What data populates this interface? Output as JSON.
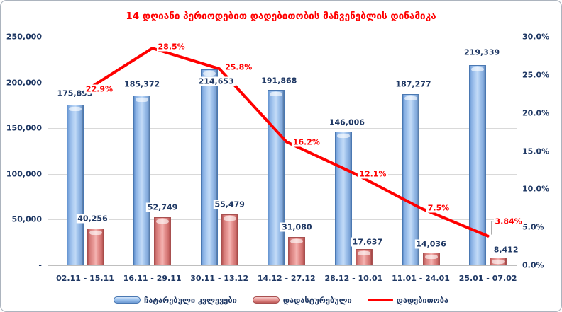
{
  "title": "14 დღიანი პერიოდებით დადებითობის მაჩვენებლის დინამიკა",
  "chart_data": {
    "type": "combo",
    "title": "14 დღიანი პერიოდებით დადებითობის მაჩვენებლის დინამიკა",
    "categories": [
      "02.11 - 15.11",
      "16.11 - 29.11",
      "30.11 - 13.12",
      "14.12 - 27.12",
      "28.12 - 10.01",
      "11.01 - 24.01",
      "25.01 - 07.02"
    ],
    "series": [
      {
        "name": "ჩატარებული კვლევები",
        "type": "bar",
        "axis": "left",
        "color": "#9DC3EE",
        "values": [
          175893,
          185372,
          214653,
          191868,
          146006,
          187277,
          219339
        ],
        "labels": [
          "175,893",
          "185,372",
          "214,653",
          "191,868",
          "146,006",
          "187,277",
          "219,339"
        ],
        "label_offsets": [
          [
            0,
            0
          ],
          [
            0,
            0
          ],
          [
            10,
            33
          ],
          [
            4,
            3
          ],
          [
            5,
            3
          ],
          [
            4,
            2
          ],
          [
            6,
            -2
          ]
        ]
      },
      {
        "name": "დადასტურებული",
        "type": "bar",
        "axis": "left",
        "color": "#E89A98",
        "values": [
          40256,
          52749,
          55479,
          31080,
          17637,
          14036,
          8412
        ],
        "labels": [
          "40,256",
          "52,749",
          "55,479",
          "31,080",
          "17,637",
          "14,036",
          "8,412"
        ],
        "label_offsets": [
          [
            -4,
            0
          ],
          [
            0,
            0
          ],
          [
            0,
            0
          ],
          [
            0,
            0
          ],
          [
            5,
            4
          ],
          [
            0,
            2
          ],
          [
            11,
            3
          ]
        ]
      },
      {
        "name": "დადებითობა",
        "type": "line",
        "axis": "right",
        "color": "#FF0000",
        "values": [
          22.9,
          28.5,
          25.8,
          16.2,
          12.1,
          7.5,
          3.84
        ],
        "labels": [
          "22.9%",
          "28.5%",
          "25.8%",
          "16.2%",
          "12.1%",
          "7.5%",
          "3.84%"
        ],
        "label_offsets": [
          [
            -7,
            0
          ],
          [
            0,
            0
          ],
          [
            0,
            0
          ],
          [
            1,
            2
          ],
          [
            0,
            3
          ],
          [
            -2,
            2
          ],
          [
            2,
            -19
          ]
        ]
      }
    ],
    "left_axis": {
      "min": 0,
      "max": 250000,
      "ticks": [
        {
          "label": "250,000",
          "value": 250000
        },
        {
          "label": "200,000",
          "value": 200000
        },
        {
          "label": "150,000",
          "value": 150000
        },
        {
          "label": "100,000",
          "value": 100000
        },
        {
          "label": "50,000",
          "value": 50000
        },
        {
          "label": "-",
          "value": 0
        }
      ]
    },
    "right_axis": {
      "min": 0,
      "max": 30,
      "ticks": [
        {
          "label": "30.0%",
          "value": 30
        },
        {
          "label": "25.0%",
          "value": 25
        },
        {
          "label": "20.0%",
          "value": 20
        },
        {
          "label": "15.0%",
          "value": 15
        },
        {
          "label": "10.0%",
          "value": 10
        },
        {
          "label": "5.0%",
          "value": 5
        },
        {
          "label": "0.0%",
          "value": 0
        }
      ]
    },
    "grid": true,
    "legend_position": "bottom"
  },
  "colors": {
    "title": "#FF0000",
    "axis_text": "#1F3864",
    "line": "#FF0000",
    "gridline": "#D9D9D9",
    "blue_bar": "#9DC3EE",
    "pink_bar": "#E89A98"
  }
}
